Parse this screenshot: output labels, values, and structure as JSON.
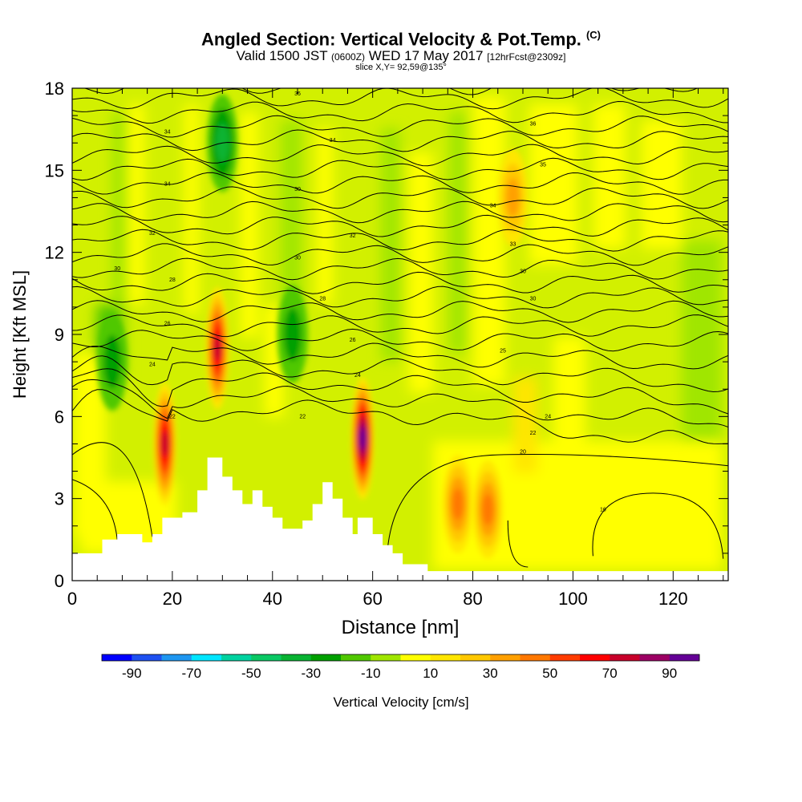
{
  "title": {
    "main": "Angled Section: Vertical Velocity & Pot.Temp.",
    "main_suffix": "(C)",
    "valid_prefix": "Valid 1500 JST",
    "valid_zulu": "(0600Z)",
    "valid_date": "WED 17 May 2017",
    "valid_fcst": "[12hrFcst@2309z]",
    "slice": "slice X,Y= 92,59@135°"
  },
  "chart_data": {
    "type": "heatmap",
    "xlabel": "Distance [nm]",
    "ylabel": "Height [Kft MSL]",
    "xlim": [
      0,
      131
    ],
    "ylim": [
      0,
      18
    ],
    "x_ticks": [
      "0",
      "20",
      "40",
      "60",
      "80",
      "100",
      "120"
    ],
    "y_ticks": [
      "0",
      "3",
      "6",
      "9",
      "12",
      "15",
      "18"
    ],
    "colorbar": {
      "label": "Vertical Velocity [cm/s]",
      "tick_labels": [
        "-90",
        "-70",
        "-50",
        "-30",
        "-10",
        "10",
        "30",
        "50",
        "70",
        "90"
      ],
      "colors": [
        "#0000ff",
        "#1e50f0",
        "#1e96f0",
        "#00e6ff",
        "#00d2a0",
        "#0ac864",
        "#09b332",
        "#00a000",
        "#50c800",
        "#a0e600",
        "#ffff00",
        "#ffe600",
        "#ffc800",
        "#ffa000",
        "#ff7800",
        "#ff3c00",
        "#ff0000",
        "#c8002a",
        "#9c0064",
        "#640096"
      ]
    },
    "terrain_profile": [
      [
        0,
        1
      ],
      [
        6,
        1
      ],
      [
        6,
        1.5
      ],
      [
        9,
        1.5
      ],
      [
        9,
        1.7
      ],
      [
        14,
        1.7
      ],
      [
        14,
        1.4
      ],
      [
        16,
        1.4
      ],
      [
        16,
        1.7
      ],
      [
        18,
        1.7
      ],
      [
        18,
        2.3
      ],
      [
        22,
        2.3
      ],
      [
        22,
        2.5
      ],
      [
        25,
        2.5
      ],
      [
        25,
        3.3
      ],
      [
        27,
        3.3
      ],
      [
        27,
        4.5
      ],
      [
        30,
        4.5
      ],
      [
        30,
        3.8
      ],
      [
        32,
        3.8
      ],
      [
        32,
        3.3
      ],
      [
        34,
        3.3
      ],
      [
        34,
        2.8
      ],
      [
        36,
        2.8
      ],
      [
        36,
        3.3
      ],
      [
        38,
        3.3
      ],
      [
        38,
        2.7
      ],
      [
        40,
        2.7
      ],
      [
        40,
        2.3
      ],
      [
        42,
        2.3
      ],
      [
        42,
        1.9
      ],
      [
        46,
        1.9
      ],
      [
        46,
        2.2
      ],
      [
        48,
        2.2
      ],
      [
        48,
        2.8
      ],
      [
        50,
        2.8
      ],
      [
        50,
        3.6
      ],
      [
        52,
        3.6
      ],
      [
        52,
        3.0
      ],
      [
        54,
        3.0
      ],
      [
        54,
        2.3
      ],
      [
        56,
        2.3
      ],
      [
        56,
        1.7
      ],
      [
        57,
        1.7
      ],
      [
        57,
        2.3
      ],
      [
        60,
        2.3
      ],
      [
        60,
        1.7
      ],
      [
        62,
        1.7
      ],
      [
        62,
        1.3
      ],
      [
        64,
        1.3
      ],
      [
        64,
        1.0
      ],
      [
        66,
        1.0
      ],
      [
        66,
        0.6
      ],
      [
        71,
        0.6
      ],
      [
        71,
        0.35
      ],
      [
        131,
        0.35
      ]
    ],
    "velocity_features": [
      {
        "x": 18.5,
        "y": 5.0,
        "value": 70
      },
      {
        "x": 29,
        "y": 8.5,
        "value": 70
      },
      {
        "x": 58,
        "y": 5.2,
        "value": 90
      },
      {
        "x": 77,
        "y": 2.8,
        "value": 35
      },
      {
        "x": 83,
        "y": 2.6,
        "value": 40
      },
      {
        "x": 30,
        "y": 16.0,
        "value": -30
      },
      {
        "x": 44,
        "y": 9.0,
        "value": -20
      },
      {
        "x": 8,
        "y": 8.0,
        "value": -15
      },
      {
        "x": 88,
        "y": 14.0,
        "value": 25
      }
    ],
    "contour_labels": [
      {
        "x": 45,
        "y": 17.8,
        "label": "36"
      },
      {
        "x": 19,
        "y": 16.4,
        "label": "34"
      },
      {
        "x": 52,
        "y": 16.1,
        "label": "34"
      },
      {
        "x": 92,
        "y": 16.7,
        "label": "36"
      },
      {
        "x": 19,
        "y": 14.5,
        "label": "34"
      },
      {
        "x": 45,
        "y": 14.3,
        "label": "30"
      },
      {
        "x": 94,
        "y": 15.2,
        "label": "35"
      },
      {
        "x": 16,
        "y": 12.7,
        "label": "32"
      },
      {
        "x": 56,
        "y": 12.6,
        "label": "32"
      },
      {
        "x": 84,
        "y": 13.7,
        "label": "34"
      },
      {
        "x": 88,
        "y": 12.3,
        "label": "33"
      },
      {
        "x": 45,
        "y": 11.8,
        "label": "30"
      },
      {
        "x": 9,
        "y": 11.4,
        "label": "30"
      },
      {
        "x": 20,
        "y": 11.0,
        "label": "28"
      },
      {
        "x": 90,
        "y": 11.3,
        "label": "30"
      },
      {
        "x": 50,
        "y": 10.3,
        "label": "28"
      },
      {
        "x": 92,
        "y": 10.3,
        "label": "30"
      },
      {
        "x": 19,
        "y": 9.4,
        "label": "26"
      },
      {
        "x": 56,
        "y": 8.8,
        "label": "26"
      },
      {
        "x": 86,
        "y": 8.4,
        "label": "25"
      },
      {
        "x": 16,
        "y": 7.9,
        "label": "24"
      },
      {
        "x": 57,
        "y": 7.5,
        "label": "24"
      },
      {
        "x": 46,
        "y": 6.0,
        "label": "22"
      },
      {
        "x": 20,
        "y": 6.0,
        "label": "22"
      },
      {
        "x": 95,
        "y": 6.0,
        "label": "24"
      },
      {
        "x": 92,
        "y": 5.4,
        "label": "22"
      },
      {
        "x": 90,
        "y": 4.7,
        "label": "20"
      },
      {
        "x": 106,
        "y": 2.6,
        "label": "16"
      }
    ]
  }
}
